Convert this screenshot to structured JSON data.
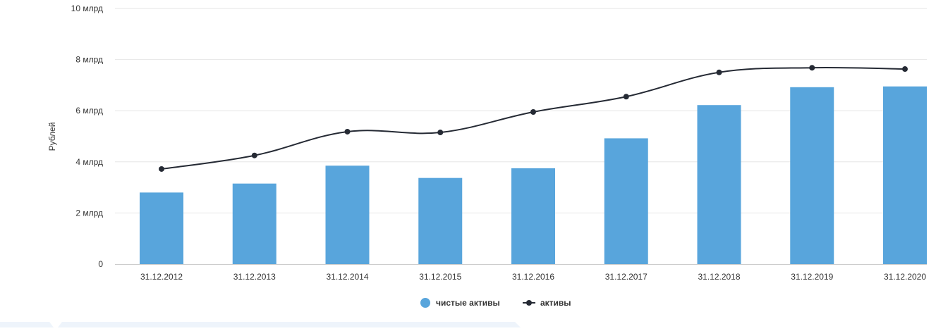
{
  "chart_data": {
    "type": "bar",
    "categories": [
      "31.12.2012",
      "31.12.2013",
      "31.12.2014",
      "31.12.2015",
      "31.12.2016",
      "31.12.2017",
      "31.12.2018",
      "31.12.2019",
      "31.12.2020"
    ],
    "series": [
      {
        "name": "чистые активы",
        "type": "bar",
        "values": [
          2.8,
          3.15,
          3.85,
          3.37,
          3.75,
          4.92,
          6.22,
          6.92,
          6.95
        ]
      },
      {
        "name": "активы",
        "type": "line",
        "values": [
          3.72,
          4.25,
          5.18,
          5.15,
          5.95,
          6.55,
          7.5,
          7.68,
          7.63
        ]
      }
    ],
    "ylabel": "Рублей",
    "ylim": [
      0,
      10
    ],
    "yticks": [
      {
        "value": 0,
        "label": "0"
      },
      {
        "value": 2,
        "label": "2 млрд"
      },
      {
        "value": 4,
        "label": "4 млрд"
      },
      {
        "value": 6,
        "label": "6 млрд"
      },
      {
        "value": 8,
        "label": "8 млрд"
      },
      {
        "value": 10,
        "label": "10 млрд"
      }
    ],
    "grid": true,
    "legend_position": "bottom-center",
    "colors": {
      "bar": "#58a5dc",
      "line": "#252a34",
      "grid": "#e6e6e6",
      "axis": "#cccccc"
    }
  }
}
